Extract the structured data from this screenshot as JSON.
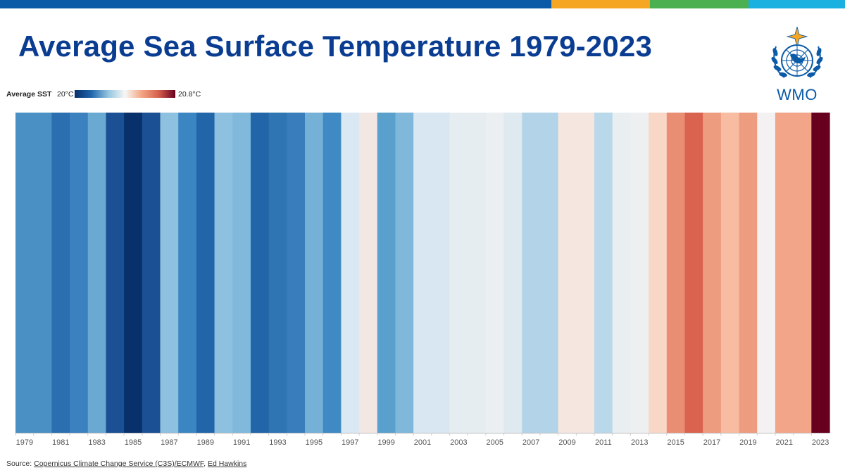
{
  "header": {
    "title": "Average Sea Surface Temperature 1979-2023",
    "stripe_colors": [
      "#0a5aa8",
      "#f5a623",
      "#4caf50",
      "#1ab0e0"
    ]
  },
  "legend": {
    "label": "Average SST",
    "min_label": "20°C",
    "max_label": "20.8°C"
  },
  "logo": {
    "text": "WMO",
    "icon": "un-emblem-icon"
  },
  "source": {
    "prefix": "Source:",
    "link1": "Copernicus Climate Change Service (C3S)/ECMWF",
    "separator": ", ",
    "link2": "Ed Hawkins"
  },
  "chart_data": {
    "type": "heatmap",
    "title": "Average Sea Surface Temperature 1979-2023",
    "xlabel": "",
    "ylabel": "",
    "color_scale": {
      "min": 20.0,
      "max": 20.8,
      "unit": "°C",
      "label": "Average SST"
    },
    "years": [
      1979,
      1980,
      1981,
      1982,
      1983,
      1984,
      1985,
      1986,
      1987,
      1988,
      1989,
      1990,
      1991,
      1992,
      1993,
      1994,
      1995,
      1996,
      1997,
      1998,
      1999,
      2000,
      2001,
      2002,
      2003,
      2004,
      2005,
      2006,
      2007,
      2008,
      2009,
      2010,
      2011,
      2012,
      2013,
      2014,
      2015,
      2016,
      2017,
      2018,
      2019,
      2020,
      2021,
      2022,
      2023
    ],
    "colors": [
      "#4a90c4",
      "#4a90c4",
      "#2c6fb0",
      "#3b80bf",
      "#6aaad2",
      "#1b5194",
      "#08306b",
      "#1b5194",
      "#8ec0df",
      "#3b86c2",
      "#2266a9",
      "#8ec0df",
      "#80b9dc",
      "#2266a9",
      "#2f74b3",
      "#3a7dbc",
      "#75b0d6",
      "#3f8ac4",
      "#d9e8f2",
      "#f3e7e3",
      "#5aa0cc",
      "#7fb8da",
      "#d8e7f1",
      "#d8e7f1",
      "#e6edf1",
      "#e6edf1",
      "#ebeff1",
      "#dfe9f0",
      "#b3d4e8",
      "#b3d4e8",
      "#f5e6df",
      "#f5e6df",
      "#b9d8ea",
      "#e9eef1",
      "#eeeff1",
      "#f9d7c7",
      "#ea8e73",
      "#d9634f",
      "#ee9c7f",
      "#f7bca1",
      "#ee9c7f",
      "#f3f1f1",
      "#f2a588",
      "#f2a588",
      "#67001f"
    ],
    "tick_labels": [
      "1979",
      "1981",
      "1983",
      "1985",
      "1987",
      "1989",
      "1991",
      "1993",
      "1995",
      "1997",
      "1999",
      "2001",
      "2003",
      "2005",
      "2007",
      "2009",
      "2011",
      "2013",
      "2015",
      "2017",
      "2019",
      "2021",
      "2023"
    ]
  }
}
